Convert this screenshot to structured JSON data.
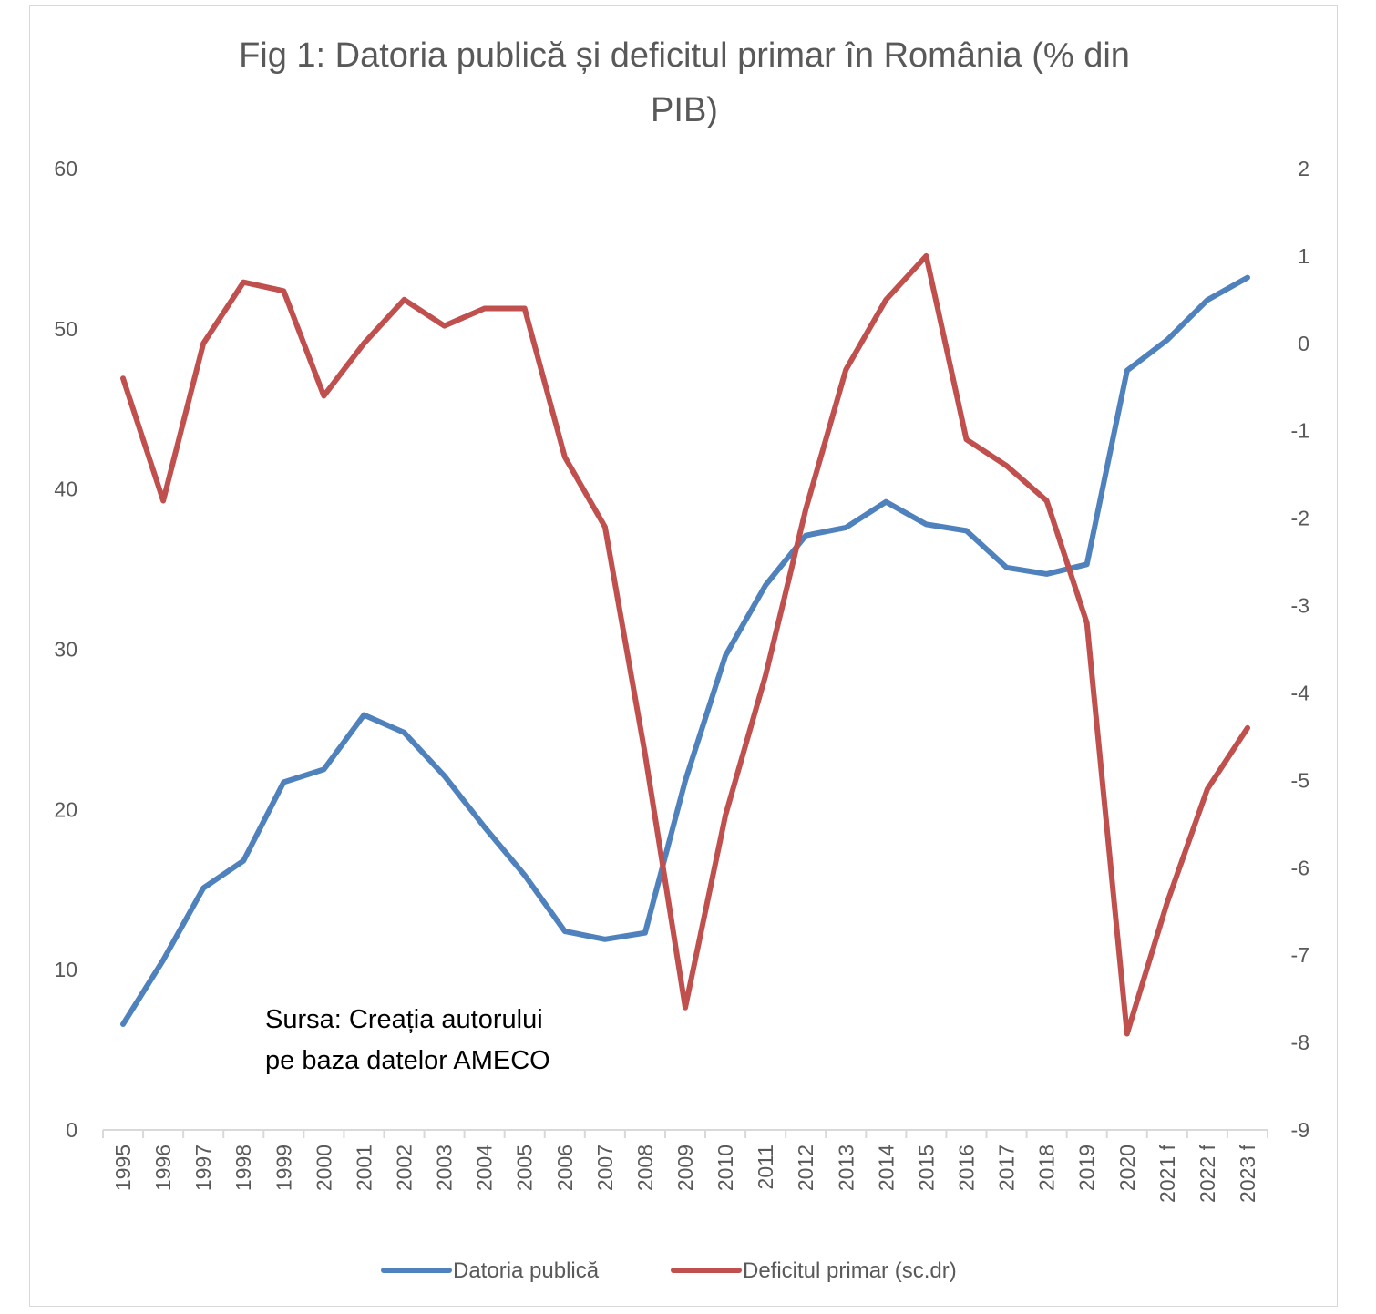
{
  "colors": {
    "debt": "#4F81BD",
    "deficit": "#C0504D",
    "axis": "#d9d9d9",
    "text": "#595959"
  },
  "chart_data": {
    "type": "line",
    "title_lines": [
      "Fig 1: Datoria publică și deficitul primar în România (% din",
      "PIB)"
    ],
    "categories": [
      "1995",
      "1996",
      "1997",
      "1998",
      "1999",
      "2000",
      "2001",
      "2002",
      "2003",
      "2004",
      "2005",
      "2006",
      "2007",
      "2008",
      "2009",
      "2010",
      "2011",
      "2012",
      "2013",
      "2014",
      "2015",
      "2016",
      "2017",
      "2018",
      "2019",
      "2020",
      "2021 f",
      "2022 f",
      "2023 f"
    ],
    "y_left": {
      "min": 0,
      "max": 60,
      "step": 10,
      "ticks": [
        "0",
        "10",
        "20",
        "30",
        "40",
        "50",
        "60"
      ]
    },
    "y_right": {
      "min": -9,
      "max": 2,
      "step": 1,
      "ticks": [
        "-9",
        "-8",
        "-7",
        "-6",
        "-5",
        "-4",
        "-3",
        "-2",
        "-1",
        "0",
        "1",
        "2"
      ]
    },
    "series": [
      {
        "name": "Datoria publică",
        "axis": "left",
        "color": "#4F81BD",
        "values": [
          6.6,
          10.6,
          15.1,
          16.8,
          21.7,
          22.5,
          25.9,
          24.8,
          22.1,
          18.9,
          15.9,
          12.4,
          11.9,
          12.3,
          21.8,
          29.6,
          34.0,
          37.1,
          37.6,
          39.2,
          37.8,
          37.4,
          35.1,
          34.7,
          35.3,
          47.4,
          49.3,
          51.8,
          53.2
        ]
      },
      {
        "name": "Deficitul primar (sc.dr)",
        "axis": "right",
        "color": "#C0504D",
        "values": [
          -0.4,
          -1.8,
          0.0,
          0.7,
          0.6,
          -0.6,
          0.0,
          0.5,
          0.2,
          0.4,
          0.4,
          -1.3,
          -2.1,
          -4.7,
          -7.6,
          -5.4,
          -3.8,
          -1.9,
          -0.3,
          0.5,
          1.0,
          -1.1,
          -1.4,
          -1.8,
          -3.2,
          -7.9,
          -6.4,
          -5.1,
          -4.4
        ]
      }
    ],
    "annotation": [
      "Sursa: Creația autorului",
      "pe baza datelor AMECO"
    ],
    "legend_position": "bottom",
    "grid": false
  }
}
